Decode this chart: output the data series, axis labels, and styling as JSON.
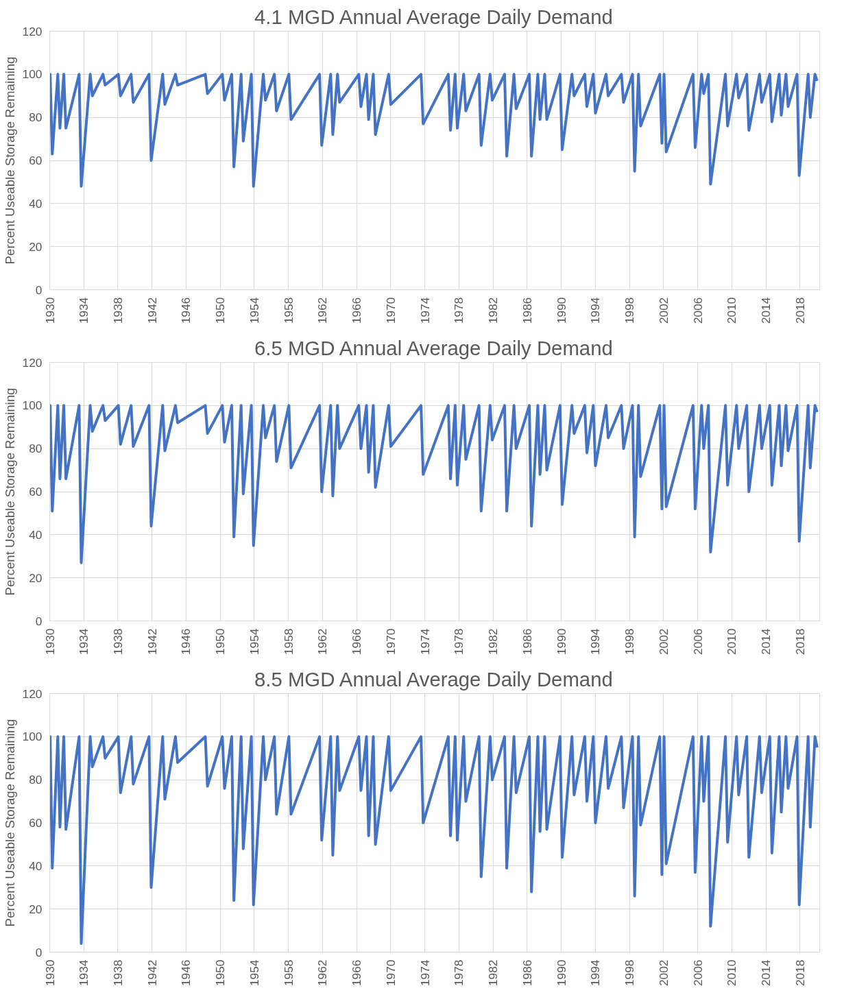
{
  "chart_data": [
    {
      "type": "line",
      "title": "4.1 MGD Annual Average Daily Demand",
      "ylabel": "Percent Useable Storage Remaining",
      "xlim": [
        1930,
        2020.3
      ],
      "ylim": [
        0,
        120
      ],
      "xticks": [
        1930,
        1934,
        1938,
        1942,
        1946,
        1950,
        1954,
        1958,
        1962,
        1966,
        1970,
        1974,
        1978,
        1982,
        1986,
        1990,
        1994,
        1998,
        2002,
        2006,
        2010,
        2014,
        2018
      ],
      "yticks": [
        0,
        20,
        40,
        60,
        80,
        100,
        120
      ],
      "grid": true,
      "x": [
        1930,
        1930.05,
        1930.3,
        1930.95,
        1931.2,
        1931.65,
        1931.9,
        1933.45,
        1933.7,
        1934.75,
        1935,
        1936.25,
        1936.5,
        1938.05,
        1938.3,
        1939.55,
        1939.8,
        1941.65,
        1941.9,
        1943.25,
        1943.5,
        1944.75,
        1945,
        1948.25,
        1948.5,
        1950.25,
        1950.5,
        1951.35,
        1951.6,
        1952.45,
        1952.7,
        1953.65,
        1953.9,
        1955.05,
        1955.3,
        1956.35,
        1956.6,
        1958.05,
        1958.3,
        1961.65,
        1961.9,
        1962.95,
        1963.2,
        1963.75,
        1964,
        1966.25,
        1966.5,
        1967.15,
        1967.4,
        1967.95,
        1968.2,
        1969.75,
        1970,
        1973.55,
        1973.8,
        1976.75,
        1977,
        1977.55,
        1977.8,
        1978.55,
        1978.8,
        1980.35,
        1980.6,
        1981.65,
        1981.9,
        1983.35,
        1983.6,
        1984.45,
        1984.7,
        1986.25,
        1986.5,
        1987.25,
        1987.5,
        1988.05,
        1988.3,
        1989.85,
        1990.1,
        1991.25,
        1991.5,
        1992.75,
        1993,
        1993.75,
        1994,
        1995.25,
        1995.5,
        1997.05,
        1997.3,
        1998.35,
        1998.6,
        1999.05,
        1999.3,
        2001.55,
        2001.8,
        2002.05,
        2002.3,
        2005.45,
        2005.7,
        2006.45,
        2006.7,
        2007.25,
        2007.5,
        2009.25,
        2009.5,
        2010.55,
        2010.8,
        2011.75,
        2012,
        2013.25,
        2013.5,
        2014.45,
        2014.7,
        2015.55,
        2015.8,
        2016.35,
        2016.6,
        2017.65,
        2017.9,
        2018.95,
        2019.2,
        2019.75,
        2020
      ],
      "series": [
        {
          "color": "#4472c4",
          "values": [
            100,
            100,
            63,
            100,
            75,
            100,
            75,
            100,
            48,
            100,
            90,
            100,
            95,
            100,
            90,
            100,
            87,
            100,
            60,
            100,
            86,
            100,
            95,
            100,
            91,
            100,
            88,
            100,
            57,
            100,
            69,
            100,
            48,
            100,
            88,
            100,
            83,
            100,
            79,
            100,
            67,
            100,
            72,
            100,
            87,
            100,
            85,
            100,
            79,
            100,
            72,
            100,
            86,
            100,
            77,
            100,
            74,
            100,
            75,
            100,
            83,
            100,
            67,
            100,
            88,
            100,
            62,
            100,
            84,
            100,
            62,
            100,
            79,
            100,
            79,
            100,
            65,
            100,
            90,
            100,
            85,
            100,
            82,
            100,
            90,
            100,
            87,
            100,
            55,
            100,
            76,
            100,
            68,
            100,
            64,
            100,
            66,
            100,
            91,
            100,
            49,
            100,
            76,
            100,
            89,
            100,
            74,
            100,
            87,
            100,
            78,
            100,
            81,
            100,
            85,
            100,
            53,
            100,
            80,
            100,
            97
          ]
        }
      ]
    },
    {
      "type": "line",
      "title": "6.5 MGD Annual Average Daily Demand",
      "ylabel": "Percent Useable Storage Remaining",
      "xlim": [
        1930,
        2020.3
      ],
      "ylim": [
        0,
        120
      ],
      "xticks": [
        1930,
        1934,
        1938,
        1942,
        1946,
        1950,
        1954,
        1958,
        1962,
        1966,
        1970,
        1974,
        1978,
        1982,
        1986,
        1990,
        1994,
        1998,
        2002,
        2006,
        2010,
        2014,
        2018
      ],
      "yticks": [
        0,
        20,
        40,
        60,
        80,
        100,
        120
      ],
      "grid": true,
      "x": [
        1930,
        1930.05,
        1930.3,
        1930.95,
        1931.2,
        1931.65,
        1931.9,
        1933.45,
        1933.7,
        1934.75,
        1935,
        1936.25,
        1936.5,
        1938.05,
        1938.3,
        1939.55,
        1939.8,
        1941.65,
        1941.9,
        1943.25,
        1943.5,
        1944.75,
        1945,
        1948.25,
        1948.5,
        1950.25,
        1950.5,
        1951.35,
        1951.6,
        1952.45,
        1952.7,
        1953.65,
        1953.9,
        1955.05,
        1955.3,
        1956.35,
        1956.6,
        1958.05,
        1958.3,
        1961.65,
        1961.9,
        1962.95,
        1963.2,
        1963.75,
        1964,
        1966.25,
        1966.5,
        1967.15,
        1967.4,
        1967.95,
        1968.2,
        1969.75,
        1970,
        1973.55,
        1973.8,
        1976.75,
        1977,
        1977.55,
        1977.8,
        1978.55,
        1978.8,
        1980.35,
        1980.6,
        1981.65,
        1981.9,
        1983.35,
        1983.6,
        1984.45,
        1984.7,
        1986.25,
        1986.5,
        1987.25,
        1987.5,
        1988.05,
        1988.3,
        1989.85,
        1990.1,
        1991.25,
        1991.5,
        1992.75,
        1993,
        1993.75,
        1994,
        1995.25,
        1995.5,
        1997.05,
        1997.3,
        1998.35,
        1998.6,
        1999.05,
        1999.3,
        2001.55,
        2001.8,
        2002.05,
        2002.3,
        2005.45,
        2005.7,
        2006.45,
        2006.7,
        2007.25,
        2007.5,
        2009.25,
        2009.5,
        2010.55,
        2010.8,
        2011.75,
        2012,
        2013.25,
        2013.5,
        2014.45,
        2014.7,
        2015.55,
        2015.8,
        2016.35,
        2016.6,
        2017.65,
        2017.9,
        2018.95,
        2019.2,
        2019.75,
        2020
      ],
      "series": [
        {
          "color": "#4472c4",
          "values": [
            100,
            100,
            51,
            100,
            66,
            100,
            66,
            100,
            27,
            100,
            88,
            100,
            93,
            100,
            82,
            100,
            81,
            100,
            44,
            100,
            79,
            100,
            92,
            100,
            87,
            100,
            83,
            100,
            39,
            100,
            59,
            100,
            35,
            100,
            85,
            100,
            74,
            100,
            71,
            100,
            60,
            100,
            58,
            100,
            80,
            100,
            80,
            100,
            69,
            100,
            62,
            100,
            81,
            100,
            68,
            100,
            66,
            100,
            63,
            100,
            75,
            100,
            51,
            100,
            84,
            100,
            51,
            100,
            80,
            100,
            44,
            100,
            68,
            100,
            70,
            100,
            54,
            100,
            87,
            100,
            78,
            100,
            72,
            100,
            85,
            100,
            80,
            100,
            39,
            100,
            67,
            100,
            52,
            100,
            53,
            100,
            52,
            100,
            80,
            100,
            32,
            100,
            63,
            100,
            80,
            100,
            60,
            100,
            80,
            100,
            63,
            100,
            72,
            100,
            79,
            100,
            37,
            100,
            71,
            100,
            97
          ]
        }
      ]
    },
    {
      "type": "line",
      "title": "8.5 MGD Annual Average Daily Demand",
      "ylabel": "Percent Useable Storage Remaining",
      "xlim": [
        1930,
        2020.3
      ],
      "ylim": [
        0,
        120
      ],
      "xticks": [
        1930,
        1934,
        1938,
        1942,
        1946,
        1950,
        1954,
        1958,
        1962,
        1966,
        1970,
        1974,
        1978,
        1982,
        1986,
        1990,
        1994,
        1998,
        2002,
        2006,
        2010,
        2014,
        2018
      ],
      "yticks": [
        0,
        20,
        40,
        60,
        80,
        100,
        120
      ],
      "grid": true,
      "x": [
        1930,
        1930.05,
        1930.3,
        1930.95,
        1931.2,
        1931.65,
        1931.9,
        1933.45,
        1933.7,
        1934.75,
        1935,
        1936.25,
        1936.5,
        1938.05,
        1938.3,
        1939.55,
        1939.8,
        1941.65,
        1941.9,
        1943.25,
        1943.5,
        1944.75,
        1945,
        1948.25,
        1948.5,
        1950.25,
        1950.5,
        1951.35,
        1951.6,
        1952.45,
        1952.7,
        1953.65,
        1953.9,
        1955.05,
        1955.3,
        1956.35,
        1956.6,
        1958.05,
        1958.3,
        1961.65,
        1961.9,
        1962.95,
        1963.2,
        1963.75,
        1964,
        1966.25,
        1966.5,
        1967.15,
        1967.4,
        1967.95,
        1968.2,
        1969.75,
        1970,
        1973.55,
        1973.8,
        1976.75,
        1977,
        1977.55,
        1977.8,
        1978.55,
        1978.8,
        1980.35,
        1980.6,
        1981.65,
        1981.9,
        1983.35,
        1983.6,
        1984.45,
        1984.7,
        1986.25,
        1986.5,
        1987.25,
        1987.5,
        1988.05,
        1988.3,
        1989.85,
        1990.1,
        1991.25,
        1991.5,
        1992.75,
        1993,
        1993.75,
        1994,
        1995.25,
        1995.5,
        1997.05,
        1997.3,
        1998.35,
        1998.6,
        1999.05,
        1999.3,
        2001.55,
        2001.8,
        2002.05,
        2002.3,
        2005.45,
        2005.7,
        2006.45,
        2006.7,
        2007.25,
        2007.5,
        2009.25,
        2009.5,
        2010.55,
        2010.8,
        2011.75,
        2012,
        2013.25,
        2013.5,
        2014.45,
        2014.7,
        2015.55,
        2015.8,
        2016.35,
        2016.6,
        2017.65,
        2017.9,
        2018.95,
        2019.2,
        2019.75,
        2020
      ],
      "series": [
        {
          "color": "#4472c4",
          "values": [
            100,
            100,
            39,
            100,
            58,
            100,
            57,
            100,
            4,
            100,
            86,
            100,
            90,
            100,
            74,
            100,
            78,
            100,
            30,
            100,
            71,
            100,
            88,
            100,
            77,
            100,
            76,
            100,
            24,
            100,
            48,
            100,
            22,
            100,
            80,
            100,
            64,
            100,
            64,
            100,
            52,
            100,
            45,
            100,
            75,
            100,
            75,
            100,
            54,
            100,
            50,
            100,
            75,
            100,
            60,
            100,
            54,
            100,
            52,
            100,
            70,
            100,
            35,
            100,
            80,
            100,
            39,
            100,
            74,
            100,
            28,
            100,
            56,
            100,
            57,
            100,
            44,
            100,
            73,
            100,
            70,
            100,
            60,
            100,
            76,
            100,
            67,
            100,
            26,
            100,
            59,
            100,
            36,
            100,
            41,
            100,
            37,
            100,
            70,
            100,
            12,
            100,
            51,
            100,
            73,
            100,
            44,
            100,
            74,
            100,
            46,
            100,
            65,
            100,
            76,
            100,
            22,
            100,
            58,
            100,
            95
          ]
        }
      ]
    }
  ]
}
